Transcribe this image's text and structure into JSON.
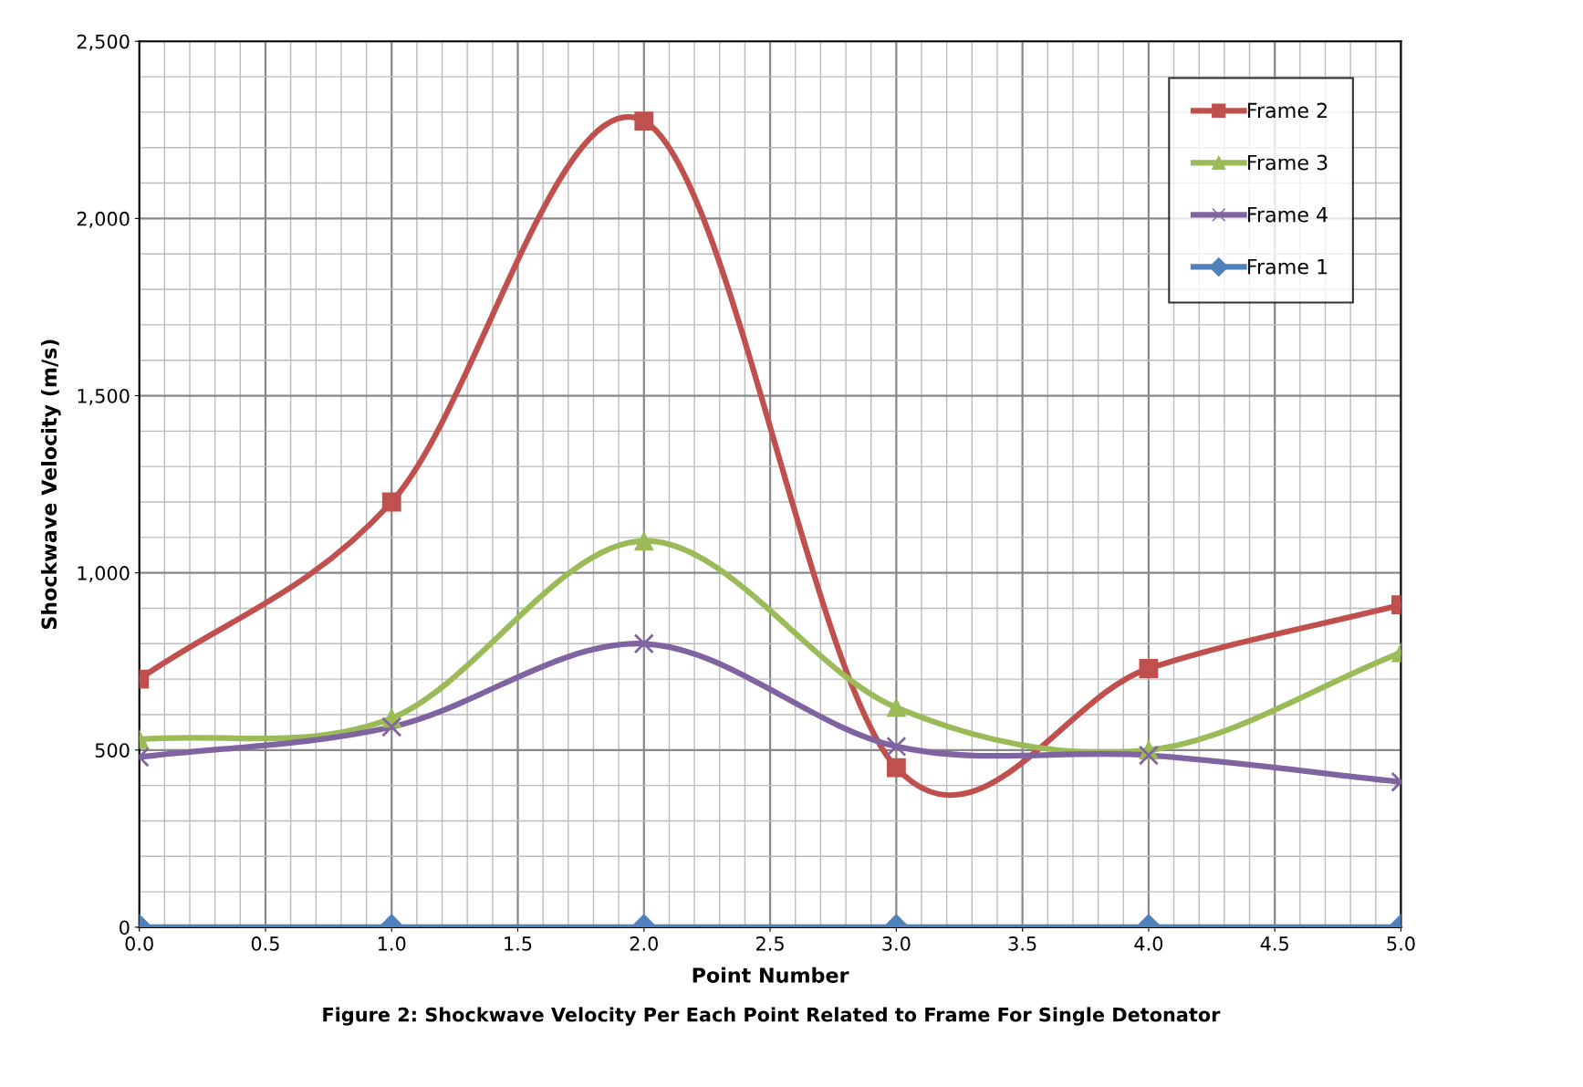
{
  "chart_data": {
    "type": "line",
    "xlabel": "Point Number",
    "ylabel": "Shockwave Velocity (m/s)",
    "x": [
      0,
      1,
      2,
      3,
      4,
      5
    ],
    "series": [
      {
        "name": "Frame 2",
        "color": "#c0504d",
        "marker": "square",
        "values": [
          700,
          1200,
          2275,
          450,
          730,
          910
        ]
      },
      {
        "name": "Frame 3",
        "color": "#9bbb59",
        "marker": "triangle",
        "values": [
          530,
          590,
          1090,
          620,
          500,
          775
        ]
      },
      {
        "name": "Frame 4",
        "color": "#8064a2",
        "marker": "cross",
        "values": [
          480,
          565,
          800,
          510,
          485,
          410
        ]
      },
      {
        "name": "Frame 1",
        "color": "#4f81bd",
        "marker": "diamond",
        "values": [
          0,
          0,
          0,
          0,
          0,
          0
        ]
      }
    ],
    "xlim": [
      0,
      5
    ],
    "xticks": [
      {
        "value": 0,
        "label": "0.0"
      },
      0.5,
      {
        "value": 1,
        "label": "1.0"
      },
      1.5,
      {
        "value": 2,
        "label": "2.0"
      },
      2.5,
      {
        "value": 3,
        "label": "3.0"
      },
      3.5,
      {
        "value": 4,
        "label": "4.0"
      },
      4.5,
      {
        "value": 5,
        "label": "5.0"
      }
    ],
    "ylim": [
      0,
      2500
    ],
    "yticks": [
      0,
      500,
      {
        "value": 1000,
        "label": "1,000"
      },
      {
        "value": 1500,
        "label": "1,500"
      },
      {
        "value": 2000,
        "label": "2,000"
      },
      {
        "value": 2500,
        "label": "2,500"
      }
    ],
    "grid": true,
    "legend": "top right",
    "line_style": "solid",
    "annotations": [
      "Figure 2: Shockwave Velocity Per Each Point Related to Frame For Single Detonator"
    ]
  }
}
